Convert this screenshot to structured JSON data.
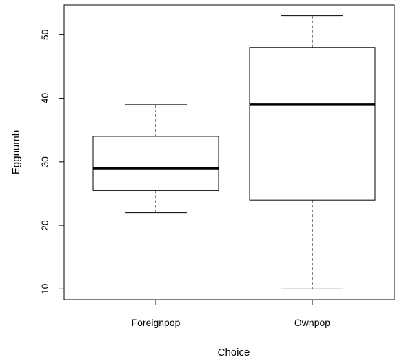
{
  "chart_data": {
    "type": "box",
    "xlabel": "Choice",
    "ylabel": "Eggnumb",
    "categories": [
      "Foreignpop",
      "Ownpop"
    ],
    "boxes": [
      {
        "category": "Foreignpop",
        "min": 22,
        "q1": 25.5,
        "median": 29,
        "q3": 34,
        "max": 39
      },
      {
        "category": "Ownpop",
        "min": 10,
        "q1": 24,
        "median": 39,
        "q3": 48,
        "max": 53
      }
    ],
    "yticks": [
      10,
      20,
      30,
      40,
      50
    ],
    "ylim": [
      8.3,
      54.7
    ],
    "grid": false,
    "legend": "none"
  }
}
